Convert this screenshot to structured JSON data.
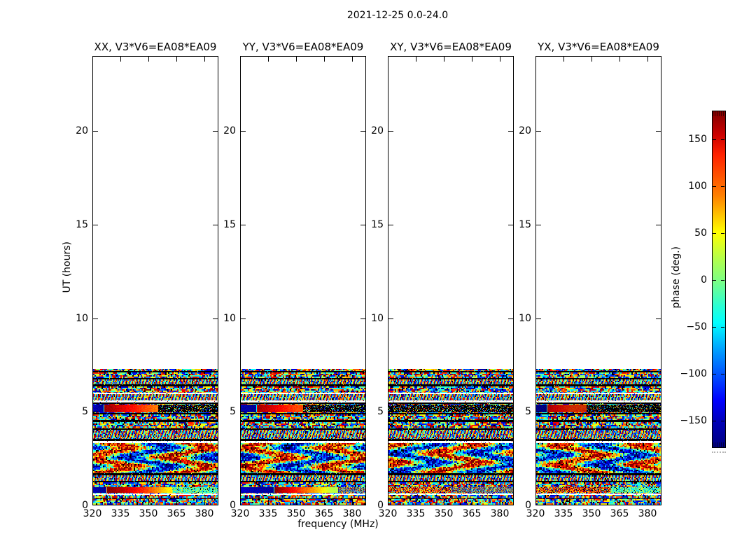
{
  "figure": {
    "title": "2021-12-25 0.0-24.0"
  },
  "chart_data": {
    "type": "heatmap",
    "title": "2021-12-25 0.0-24.0",
    "xlabel": "frequency (MHz)",
    "ylabel": "UT (hours)",
    "baseline": "V3*V6=EA08*EA09",
    "panels": [
      {
        "pol": "XX",
        "title": "XX, V3*V6=EA08*EA09"
      },
      {
        "pol": "YY",
        "title": "YY, V3*V6=EA08*EA09"
      },
      {
        "pol": "XY",
        "title": "XY, V3*V6=EA08*EA09"
      },
      {
        "pol": "YX",
        "title": "YX, V3*V6=EA08*EA09"
      }
    ],
    "x_ticks": [
      320,
      335,
      350,
      365,
      380
    ],
    "x_range": [
      320,
      388
    ],
    "y_ticks": [
      0,
      5,
      10,
      15,
      20
    ],
    "y_range": [
      0,
      24
    ],
    "data_extent_hours": [
      0,
      7.25
    ],
    "grid": false,
    "colorbar": {
      "label": "phase (deg.)",
      "ticks": [
        150,
        100,
        50,
        0,
        -50,
        -100,
        -150
      ],
      "range": [
        -180,
        180
      ],
      "colormap": "jet",
      "color_max": "#800000",
      "color_min": "#000080"
    },
    "colors": {
      "frame": "#000000",
      "background": "#ffffff"
    },
    "bands": [
      [
        7.25,
        7.13,
        "noise"
      ],
      [
        7.13,
        7.05,
        "black"
      ],
      [
        7.05,
        6.76,
        "noise"
      ],
      [
        6.76,
        6.68,
        "black"
      ],
      [
        6.68,
        6.42,
        "fine"
      ],
      [
        6.42,
        6.31,
        "black"
      ],
      [
        6.31,
        5.98,
        "noise"
      ],
      [
        5.98,
        5.9,
        "white"
      ],
      [
        5.9,
        5.56,
        "fine"
      ],
      [
        5.56,
        5.45,
        "white"
      ],
      [
        5.45,
        5.37,
        "black"
      ],
      [
        5.37,
        4.89,
        "smearA"
      ],
      [
        4.89,
        4.81,
        "black"
      ],
      [
        4.81,
        4.52,
        "noise"
      ],
      [
        4.52,
        4.4,
        "black"
      ],
      [
        4.4,
        4.07,
        "noise"
      ],
      [
        4.07,
        3.99,
        "black"
      ],
      [
        3.99,
        3.51,
        "fine"
      ],
      [
        3.51,
        3.4,
        "black"
      ],
      [
        3.4,
        3.28,
        "white"
      ],
      [
        3.28,
        1.68,
        "big"
      ],
      [
        1.68,
        1.57,
        "black"
      ],
      [
        1.57,
        1.27,
        "fine"
      ],
      [
        1.27,
        1.19,
        "black"
      ],
      [
        1.19,
        0.97,
        "noise"
      ],
      [
        0.97,
        0.6,
        "smearB"
      ],
      [
        0.6,
        0.52,
        "white"
      ],
      [
        0.52,
        0.34,
        "noise"
      ],
      [
        0.34,
        0.3,
        "black"
      ],
      [
        0.3,
        0.0,
        "noise"
      ]
    ],
    "features": {
      "smearA": [
        {
          "points": [
            [
              0,
              0.06
            ],
            [
              0.08,
              0.02
            ],
            [
              0.09,
              0.98
            ],
            [
              0.25,
              0.9
            ],
            [
              0.42,
              0.8
            ],
            [
              0.5,
              0.76
            ],
            [
              0.52,
              -1
            ]
          ]
        },
        {
          "points": [
            [
              0,
              0.05
            ],
            [
              0.12,
              0.02
            ],
            [
              0.13,
              0.97
            ],
            [
              0.3,
              0.88
            ],
            [
              0.45,
              0.8
            ],
            [
              0.5,
              -1
            ]
          ]
        },
        {
          "points": [
            [
              0,
              -1
            ]
          ]
        },
        {
          "points": [
            [
              0,
              0.05
            ],
            [
              0.08,
              0.02
            ],
            [
              0.09,
              0.92
            ],
            [
              0.28,
              0.82
            ],
            [
              0.4,
              -1
            ]
          ],
          "dim": 0.8
        }
      ],
      "smearB": [
        {
          "points": [
            [
              0,
              0.05
            ],
            [
              0.1,
              0.02
            ],
            [
              0.11,
              1.0
            ],
            [
              0.3,
              0.9
            ],
            [
              0.42,
              0.82
            ],
            [
              0.52,
              0.72
            ],
            [
              0.6,
              0.64
            ],
            [
              0.63,
              -2
            ]
          ]
        },
        {
          "points": [
            [
              0,
              0.07
            ],
            [
              0.26,
              0.02
            ],
            [
              0.27,
              1.0
            ],
            [
              0.38,
              0.9
            ],
            [
              0.5,
              0.79
            ],
            [
              0.62,
              0.68
            ],
            [
              0.72,
              0.56
            ],
            [
              0.78,
              -4
            ]
          ]
        },
        {
          "points": [
            [
              0,
              -3
            ],
            [
              0.5,
              -4
            ]
          ]
        },
        {
          "points": [
            [
              0,
              -3
            ],
            [
              0.6,
              -2
            ]
          ]
        }
      ]
    }
  }
}
